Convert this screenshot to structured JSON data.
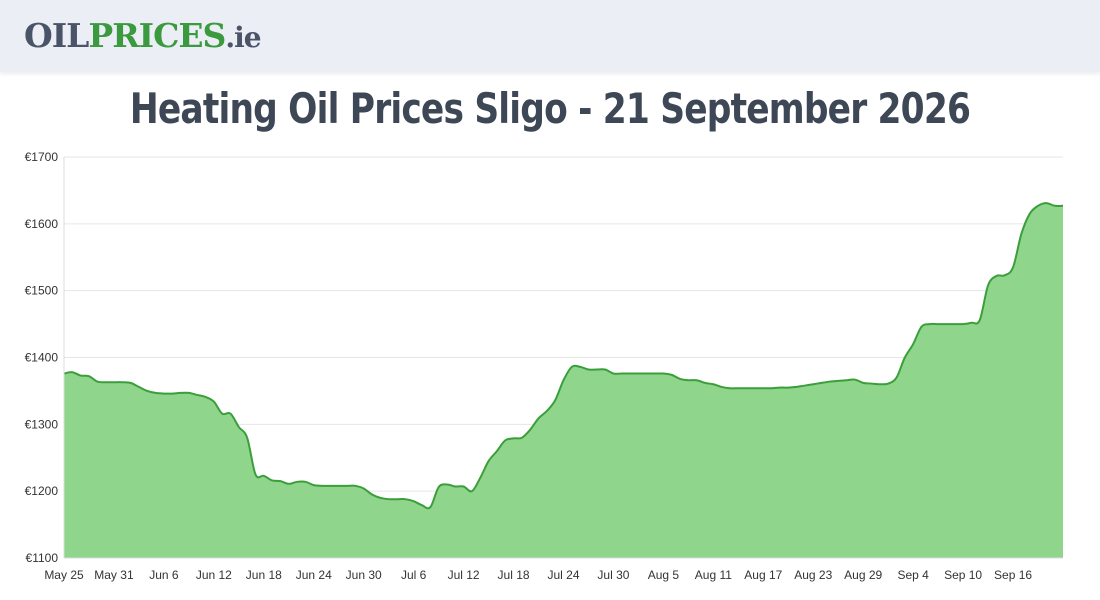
{
  "header": {
    "logo": {
      "part1": "OIL",
      "part2": "PRICES",
      "part3": ".ie"
    }
  },
  "chart_data": {
    "type": "area",
    "title": "Heating Oil Prices Sligo - 21 September 2026",
    "xlabel": "",
    "ylabel": "",
    "ylim": [
      1100,
      1700
    ],
    "y_ticks": [
      "€1700",
      "€1600",
      "€1500",
      "€1400",
      "€1300",
      "€1200",
      "€1100"
    ],
    "y_tick_values": [
      1700,
      1600,
      1500,
      1400,
      1300,
      1200,
      1100
    ],
    "x_ticks": [
      "May 25",
      "May 31",
      "Jun 6",
      "Jun 12",
      "Jun 18",
      "Jun 24",
      "Jun 30",
      "Jul 6",
      "Jul 12",
      "Jul 18",
      "Jul 24",
      "Jul 30",
      "Aug 5",
      "Aug 11",
      "Aug 17",
      "Aug 23",
      "Aug 29",
      "Sep 4",
      "Sep 10",
      "Sep 16"
    ],
    "grid": true,
    "colors": {
      "line": "#3a9f3a",
      "fill": "#90d58c"
    },
    "x": [
      0,
      1,
      2,
      3,
      4,
      5,
      6,
      7,
      8,
      9,
      10,
      11,
      12,
      13,
      14,
      15,
      16,
      17,
      18,
      19,
      20,
      21,
      22,
      23,
      24,
      25,
      26,
      27,
      28,
      29,
      30,
      31,
      32,
      33,
      34,
      35,
      36,
      37,
      38,
      39,
      40,
      41,
      42,
      43,
      44,
      45,
      46,
      47,
      48,
      49,
      50,
      51,
      52,
      53,
      54,
      55,
      56,
      57,
      58,
      59,
      60,
      61,
      62,
      63,
      64,
      65,
      66,
      67,
      68,
      69,
      70,
      71,
      72,
      73,
      74,
      75,
      76,
      77,
      78,
      79,
      80,
      81,
      82,
      83,
      84,
      85,
      86,
      87,
      88,
      89,
      90,
      91,
      92,
      93,
      94,
      95,
      96,
      97,
      98,
      99,
      100,
      101,
      102,
      103,
      104,
      105,
      106,
      107,
      108,
      109,
      110,
      111,
      112,
      113,
      114,
      115,
      116,
      117,
      118,
      119,
      120
    ],
    "values": [
      1376,
      1378,
      1373,
      1372,
      1364,
      1363,
      1363,
      1363,
      1362,
      1356,
      1350,
      1347,
      1346,
      1346,
      1347,
      1347,
      1344,
      1341,
      1334,
      1316,
      1316,
      1296,
      1280,
      1225,
      1223,
      1216,
      1215,
      1211,
      1214,
      1214,
      1209,
      1208,
      1208,
      1208,
      1208,
      1208,
      1204,
      1195,
      1190,
      1188,
      1188,
      1188,
      1185,
      1179,
      1176,
      1206,
      1210,
      1207,
      1207,
      1200,
      1220,
      1245,
      1260,
      1276,
      1279,
      1280,
      1292,
      1309,
      1320,
      1336,
      1366,
      1386,
      1386,
      1382,
      1382,
      1382,
      1376,
      1376,
      1376,
      1376,
      1376,
      1376,
      1376,
      1374,
      1368,
      1366,
      1366,
      1362,
      1360,
      1356,
      1354,
      1354,
      1354,
      1354,
      1354,
      1354,
      1355,
      1355,
      1356,
      1358,
      1360,
      1362,
      1364,
      1365,
      1366,
      1367,
      1362,
      1361,
      1360,
      1361,
      1370,
      1400,
      1420,
      1446,
      1450,
      1450,
      1450,
      1450,
      1450,
      1452,
      1456,
      1508,
      1522,
      1523,
      1535,
      1585,
      1615,
      1627,
      1631,
      1627,
      1627
    ]
  }
}
